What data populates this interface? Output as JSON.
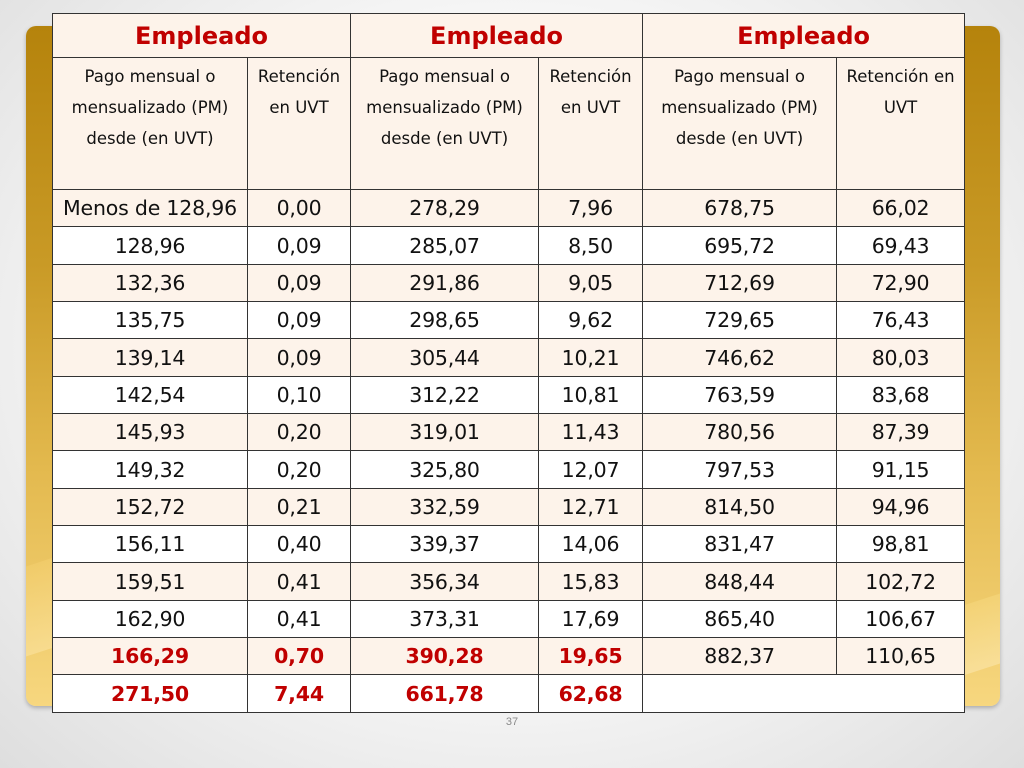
{
  "table": {
    "groups": [
      "Empleado",
      "Empleado",
      "Empleado"
    ],
    "subheaders": [
      "Pago mensual o mensualizado (PM) desde (en UVT)",
      "Retención en UVT",
      "Pago mensual o mensualizado (PM) desde (en UVT)",
      "Retención en UVT",
      "Pago mensual o mensualizado (PM) desde (en UVT)",
      "Retención en UVT"
    ],
    "rows": [
      [
        "Menos de 128,96",
        "0,00",
        "278,29",
        "7,96",
        "678,75",
        "66,02"
      ],
      [
        "128,96",
        "0,09",
        "285,07",
        "8,50",
        "695,72",
        "69,43"
      ],
      [
        "132,36",
        "0,09",
        "291,86",
        "9,05",
        "712,69",
        "72,90"
      ],
      [
        "135,75",
        "0,09",
        "298,65",
        "9,62",
        "729,65",
        "76,43"
      ],
      [
        "139,14",
        "0,09",
        "305,44",
        "10,21",
        "746,62",
        "80,03"
      ],
      [
        "142,54",
        "0,10",
        "312,22",
        "10,81",
        "763,59",
        "83,68"
      ],
      [
        "145,93",
        "0,20",
        "319,01",
        "11,43",
        "780,56",
        "87,39"
      ],
      [
        "149,32",
        "0,20",
        "325,80",
        "12,07",
        "797,53",
        "91,15"
      ],
      [
        "152,72",
        "0,21",
        "332,59",
        "12,71",
        "814,50",
        "94,96"
      ],
      [
        "156,11",
        "0,40",
        "339,37",
        "14,06",
        "831,47",
        "98,81"
      ],
      [
        "159,51",
        "0,41",
        "356,34",
        "15,83",
        "848,44",
        "102,72"
      ],
      [
        "162,90",
        "0,41",
        "373,31",
        "17,69",
        "865,40",
        "106,67"
      ],
      [
        "166,29",
        "0,70",
        "390,28",
        "19,65",
        "882,37",
        "110,65"
      ],
      [
        "271,50",
        "7,44",
        "661,78",
        "62,68",
        "",
        ""
      ]
    ],
    "highlighted_cells": {
      "12": [
        0,
        1,
        2,
        3
      ],
      "13": [
        0,
        1,
        2,
        3
      ]
    },
    "highlight_color": "#c00000"
  },
  "footer": {
    "page_number": "37"
  }
}
